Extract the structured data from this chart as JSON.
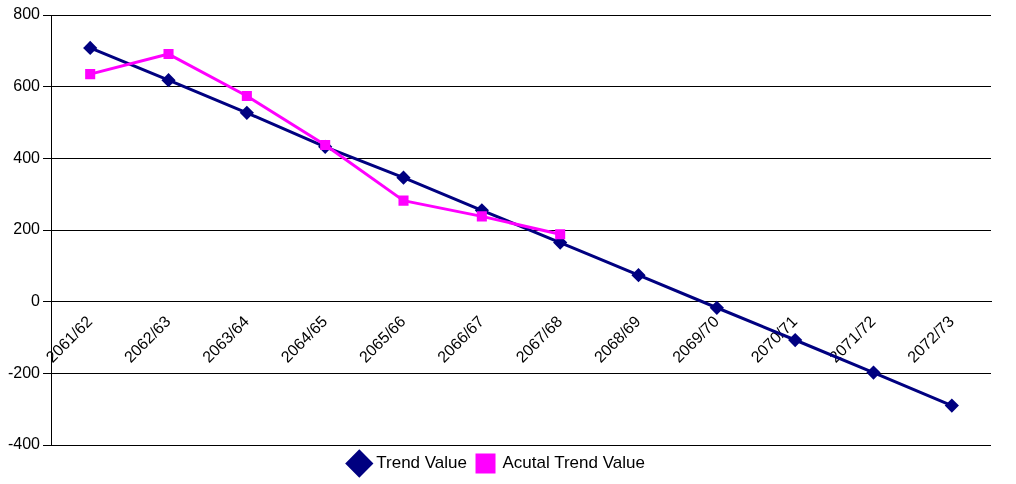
{
  "chart_data": {
    "type": "line",
    "categories": [
      "2061/62",
      "2062/63",
      "2063/64",
      "2064/65",
      "2065/66",
      "2066/67",
      "2067/68",
      "2068/69",
      "2069/70",
      "2070/71",
      "2071/72",
      "2072/73"
    ],
    "series": [
      {
        "name": "Trend Value",
        "color": "#000080",
        "marker": "diamond",
        "values": [
          708,
          618,
          527,
          432,
          346,
          255,
          165,
          74,
          -17,
          -107,
          -198,
          -290
        ]
      },
      {
        "name": "Acutal Trend Value",
        "color": "#ff00ff",
        "marker": "square",
        "values": [
          635,
          691,
          574,
          437,
          282,
          238,
          188,
          null,
          null,
          null,
          null,
          null
        ]
      }
    ],
    "ylim": [
      -400,
      800
    ],
    "yticks": [
      -400,
      -200,
      0,
      200,
      400,
      600,
      800
    ],
    "grid": "y",
    "legend": "bottom"
  }
}
